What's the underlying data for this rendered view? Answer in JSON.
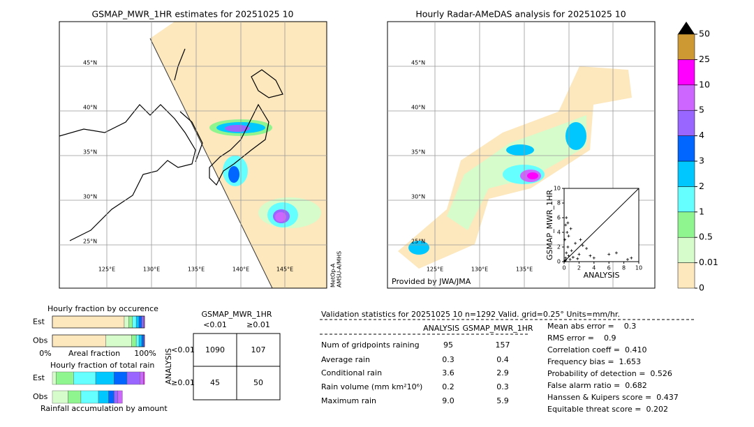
{
  "left_map": {
    "title": "GSMAP_MWR_1HR estimates for 20251025 10",
    "lat_labels": [
      "45°N",
      "40°N",
      "35°N",
      "30°N",
      "25°N"
    ],
    "lon_labels": [
      "125°E",
      "130°E",
      "135°E",
      "140°E",
      "145°E"
    ],
    "satellite_note": [
      "MetOp-A",
      "AMSU-A/MHS"
    ]
  },
  "right_map": {
    "title": "Hourly Radar-AMeDAS analysis for 20251025 10",
    "lat_labels": [
      "45°N",
      "40°N",
      "35°N",
      "30°N",
      "25°N"
    ],
    "lon_labels": [
      "125°E",
      "130°E",
      "135°E"
    ],
    "credit": "Provided by JWA/JMA"
  },
  "colorbar": {
    "levels": [
      0,
      0.01,
      0.5,
      1,
      2,
      3,
      4,
      5,
      10,
      25,
      50
    ],
    "colors": [
      "#fde7bd",
      "#d6fccb",
      "#8ff58f",
      "#66ffff",
      "#00c8ff",
      "#0066ff",
      "#9966ff",
      "#cc66ff",
      "#ff00ff",
      "#cc9933"
    ]
  },
  "scatter": {
    "xlabel": "ANALYSIS",
    "ylabel": "GSMAP_MWR_1HR",
    "xlim": [
      0,
      10
    ],
    "ylim": [
      0,
      10
    ],
    "xticks": [
      0,
      2,
      4,
      6,
      8,
      10
    ],
    "yticks": [
      0,
      2,
      4,
      6,
      8,
      10
    ],
    "x": [
      0.2,
      0.3,
      0.5,
      0.1,
      0.4,
      0.2,
      0.6,
      1,
      1.5,
      2,
      2.5,
      3,
      3.5,
      0.8,
      1.2,
      4,
      6,
      7,
      9,
      8.5,
      0.3,
      0.5,
      2.2,
      0.9,
      1.8,
      0.1,
      0.2,
      0.6
    ],
    "y": [
      0.5,
      1.2,
      2,
      3,
      4,
      5,
      3.5,
      1.5,
      2.5,
      1,
      2.2,
      1.8,
      0.8,
      0.3,
      0.6,
      0.5,
      1,
      1.2,
      0.5,
      0.3,
      6,
      5.3,
      3,
      4.5,
      0.4,
      0.1,
      0.2,
      0.8
    ]
  },
  "occurrence": {
    "title": "Hourly fraction by occurence",
    "row_labels": [
      "Est",
      "Obs"
    ],
    "axis_labels": [
      "0%",
      "Areal fraction",
      "100%"
    ],
    "rows": [
      [
        0.78,
        0.05,
        0.04,
        0.04,
        0.03,
        0.03,
        0.02,
        0.01,
        0,
        0
      ],
      [
        0.58,
        0.28,
        0.05,
        0.03,
        0.03,
        0.02,
        0.01,
        0,
        0,
        0
      ]
    ]
  },
  "total_rain": {
    "title": "Hourly fraction of total rain",
    "row_labels": [
      "Est",
      "Obs"
    ],
    "footer": "Rainfall accumulation by amount",
    "rows": [
      [
        0,
        0.04,
        0.19,
        0.24,
        0.2,
        0.14,
        0.14,
        0.04,
        0.01,
        0
      ],
      [
        0,
        0.17,
        0.14,
        0.19,
        0.11,
        0.06,
        0.04,
        0.05,
        0,
        0
      ]
    ]
  },
  "contingency": {
    "title": "GSMAP_MWR_1HR",
    "col_labels": [
      "<0.01",
      "≥0.01"
    ],
    "row_title": "ANALYSIS",
    "row_labels": [
      "<0.01",
      "≥0.01"
    ],
    "cells": [
      [
        "1090",
        "107"
      ],
      [
        "45",
        "50"
      ]
    ]
  },
  "validation": {
    "header": "Validation statistics for 20251025 10  n=1292 Valid. grid=0.25° Units=mm/hr.",
    "col_labels": [
      "ANALYSIS",
      "GSMAP_MWR_1HR"
    ],
    "rows": [
      [
        "Num of gridpoints raining",
        "95",
        "157"
      ],
      [
        "Average rain",
        "0.3",
        "0.4"
      ],
      [
        "Conditional rain",
        "3.6",
        "2.9"
      ],
      [
        "Rain volume (mm km²10⁶)",
        "0.2",
        "0.3"
      ],
      [
        "Maximum rain",
        "9.0",
        "5.9"
      ]
    ],
    "scores": [
      "Mean abs error =    0.3",
      "RMS error =    0.9",
      "Correlation coeff =  0.410",
      "Frequency bias =  1.653",
      "Probability of detection =  0.526",
      "False alarm ratio =  0.682",
      "Hanssen & Kuipers score =  0.437",
      "Equitable threat score =  0.202"
    ]
  }
}
